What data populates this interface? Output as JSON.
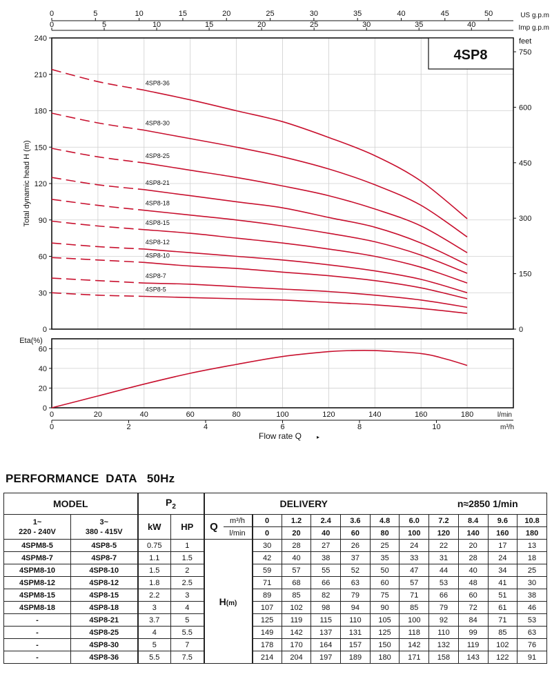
{
  "chart_data": [
    {
      "type": "line",
      "title": "4SP8",
      "ylabel": "Total dynamic head  H (m)",
      "y2label": "feet",
      "x_axis_top_labels": [
        "US g.p.m",
        "Imp g.p.m"
      ],
      "us_gpm_ticks": [
        "0",
        "5",
        "10",
        "15",
        "20",
        "25",
        "30",
        "35",
        "40",
        "45",
        "50"
      ],
      "imp_gpm_ticks": [
        "0",
        "5",
        "10",
        "15",
        "20",
        "25",
        "30",
        "35",
        "40"
      ],
      "y_ticks": [
        "0",
        "30",
        "60",
        "90",
        "120",
        "150",
        "180",
        "210",
        "240"
      ],
      "feet_ticks": [
        "0",
        "150",
        "300",
        "450",
        "600",
        "750"
      ],
      "ylim": [
        0,
        240
      ],
      "xlim": [
        0,
        200
      ],
      "x_unit": "l/min",
      "x": [
        0,
        20,
        40,
        60,
        80,
        100,
        120,
        140,
        160,
        180
      ],
      "dashed_until": 40,
      "series": [
        {
          "name": "4SP8-5",
          "values": [
            30,
            28,
            27,
            26,
            25,
            24,
            22,
            20,
            17,
            13
          ]
        },
        {
          "name": "4SP8-7",
          "values": [
            42,
            40,
            38,
            37,
            35,
            33,
            31,
            28,
            24,
            18
          ]
        },
        {
          "name": "4SP8-10",
          "values": [
            59,
            57,
            55,
            52,
            50,
            47,
            44,
            40,
            34,
            25
          ]
        },
        {
          "name": "4SP8-12",
          "values": [
            71,
            68,
            66,
            63,
            60,
            57,
            53,
            48,
            41,
            30
          ]
        },
        {
          "name": "4SP8-15",
          "values": [
            89,
            85,
            82,
            79,
            75,
            71,
            66,
            60,
            51,
            38
          ]
        },
        {
          "name": "4SP8-18",
          "values": [
            107,
            102,
            98,
            94,
            90,
            85,
            79,
            72,
            61,
            46
          ]
        },
        {
          "name": "4SP8-21",
          "values": [
            125,
            119,
            115,
            110,
            105,
            100,
            92,
            84,
            71,
            53
          ]
        },
        {
          "name": "4SP8-25",
          "values": [
            149,
            142,
            137,
            131,
            125,
            118,
            110,
            99,
            85,
            63
          ]
        },
        {
          "name": "4SP8-30",
          "values": [
            178,
            170,
            164,
            157,
            150,
            142,
            132,
            119,
            102,
            76
          ]
        },
        {
          "name": "4SP8-36",
          "values": [
            214,
            204,
            197,
            189,
            180,
            171,
            158,
            143,
            122,
            91
          ]
        }
      ],
      "grid": true,
      "line_color": "#c8102e"
    },
    {
      "type": "line",
      "ylabel": "Eta(%)",
      "y_ticks": [
        "0",
        "20",
        "40",
        "60"
      ],
      "ylim": [
        0,
        70
      ],
      "xlim": [
        0,
        200
      ],
      "x_ticks_lmin": [
        "0",
        "20",
        "40",
        "60",
        "80",
        "100",
        "120",
        "140",
        "160",
        "180"
      ],
      "x_unit_lmin": "l/min",
      "x_ticks_m3h": [
        "0",
        "2",
        "4",
        "6",
        "8",
        "10"
      ],
      "x_unit_m3h": "m³/h",
      "xlabel": "Flow  rate  Q",
      "x": [
        0,
        20,
        40,
        60,
        80,
        100,
        120,
        130,
        140,
        160,
        170,
        180
      ],
      "values": [
        0,
        12,
        24,
        35,
        44,
        52,
        57,
        58,
        58,
        55,
        50,
        43
      ],
      "grid": true,
      "line_color": "#c8102e"
    }
  ],
  "table": {
    "title": "PERFORMANCE  DATA   50Hz",
    "model_header": "MODEL",
    "p2_header": "P",
    "p2_sub": "2",
    "delivery_header": "DELIVERY",
    "speed": "n≈2850 1/min",
    "phase1_label": "1~",
    "phase1_voltage": "220 - 240V",
    "phase3_label": "3~",
    "phase3_voltage": "380 - 415V",
    "kw_label": "kW",
    "hp_label": "HP",
    "q_label": "Q",
    "unit_m3h": "m³/h",
    "unit_lmin": "l/min",
    "h_label": "H",
    "h_unit": "(m)",
    "flow_m3h": [
      "0",
      "1.2",
      "2.4",
      "3.6",
      "4.8",
      "6.0",
      "7.2",
      "8.4",
      "9.6",
      "10.8"
    ],
    "flow_lmin": [
      "0",
      "20",
      "40",
      "60",
      "80",
      "100",
      "120",
      "140",
      "160",
      "180"
    ],
    "rows": [
      {
        "m1": "4SPM8-5",
        "m3": "4SP8-5",
        "kw": "0.75",
        "hp": "1",
        "h": [
          "30",
          "28",
          "27",
          "26",
          "25",
          "24",
          "22",
          "20",
          "17",
          "13"
        ]
      },
      {
        "m1": "4SPM8-7",
        "m3": "4SP8-7",
        "kw": "1.1",
        "hp": "1.5",
        "h": [
          "42",
          "40",
          "38",
          "37",
          "35",
          "33",
          "31",
          "28",
          "24",
          "18"
        ]
      },
      {
        "m1": "4SPM8-10",
        "m3": "4SP8-10",
        "kw": "1.5",
        "hp": "2",
        "h": [
          "59",
          "57",
          "55",
          "52",
          "50",
          "47",
          "44",
          "40",
          "34",
          "25"
        ]
      },
      {
        "m1": "4SPM8-12",
        "m3": "4SP8-12",
        "kw": "1.8",
        "hp": "2.5",
        "h": [
          "71",
          "68",
          "66",
          "63",
          "60",
          "57",
          "53",
          "48",
          "41",
          "30"
        ]
      },
      {
        "m1": "4SPM8-15",
        "m3": "4SP8-15",
        "kw": "2.2",
        "hp": "3",
        "h": [
          "89",
          "85",
          "82",
          "79",
          "75",
          "71",
          "66",
          "60",
          "51",
          "38"
        ]
      },
      {
        "m1": "4SPM8-18",
        "m3": "4SP8-18",
        "kw": "3",
        "hp": "4",
        "h": [
          "107",
          "102",
          "98",
          "94",
          "90",
          "85",
          "79",
          "72",
          "61",
          "46"
        ]
      },
      {
        "m1": "-",
        "m3": "4SP8-21",
        "kw": "3.7",
        "hp": "5",
        "h": [
          "125",
          "119",
          "115",
          "110",
          "105",
          "100",
          "92",
          "84",
          "71",
          "53"
        ]
      },
      {
        "m1": "-",
        "m3": "4SP8-25",
        "kw": "4",
        "hp": "5.5",
        "h": [
          "149",
          "142",
          "137",
          "131",
          "125",
          "118",
          "110",
          "99",
          "85",
          "63"
        ]
      },
      {
        "m1": "-",
        "m3": "4SP8-30",
        "kw": "5",
        "hp": "7",
        "h": [
          "178",
          "170",
          "164",
          "157",
          "150",
          "142",
          "132",
          "119",
          "102",
          "76"
        ]
      },
      {
        "m1": "-",
        "m3": "4SP8-36",
        "kw": "5.5",
        "hp": "7.5",
        "h": [
          "214",
          "204",
          "197",
          "189",
          "180",
          "171",
          "158",
          "143",
          "122",
          "91"
        ]
      }
    ]
  }
}
